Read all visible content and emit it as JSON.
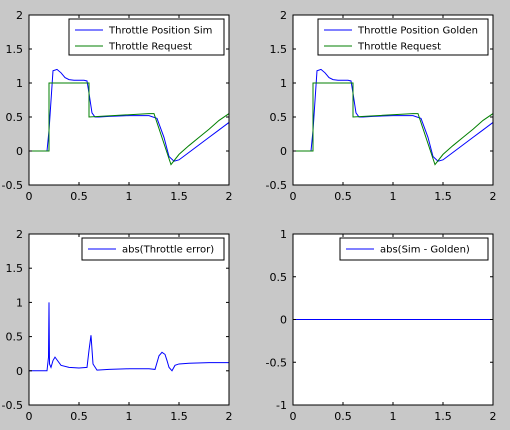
{
  "colors": {
    "figure_bg": "#c8c8c8",
    "axes_bg": "#ffffff",
    "blue": "#0000ff",
    "green": "#007f00",
    "axis": "#000000"
  },
  "chart_data": [
    {
      "type": "line",
      "title": "",
      "xlabel": "",
      "ylabel": "",
      "xlim": [
        0,
        2
      ],
      "ylim": [
        -0.5,
        2
      ],
      "xticks": [
        "0",
        "0.5",
        "1",
        "1.5",
        "2"
      ],
      "yticks": [
        "-0.5",
        "0",
        "0.5",
        "1",
        "1.5",
        "2"
      ],
      "legend_position": "top-right",
      "series": [
        {
          "name": "Throttle Position Sim",
          "color": "blue",
          "x": [
            0,
            0.18,
            0.2,
            0.24,
            0.28,
            0.32,
            0.36,
            0.4,
            0.45,
            0.5,
            0.55,
            0.58,
            0.6,
            0.63,
            0.66,
            0.7,
            0.8,
            1.0,
            1.2,
            1.28,
            1.35,
            1.4,
            1.45,
            1.5,
            1.6,
            1.7,
            1.8,
            1.9,
            2.0
          ],
          "y": [
            0,
            0,
            0.3,
            1.18,
            1.2,
            1.15,
            1.08,
            1.05,
            1.04,
            1.04,
            1.04,
            1.03,
            0.85,
            0.56,
            0.5,
            0.5,
            0.51,
            0.52,
            0.52,
            0.48,
            0.2,
            -0.08,
            -0.15,
            -0.13,
            -0.02,
            0.09,
            0.2,
            0.31,
            0.42
          ]
        },
        {
          "name": "Throttle Request",
          "color": "green",
          "x": [
            0,
            0.2,
            0.2,
            0.6,
            0.6,
            1.2,
            1.25,
            1.42,
            1.5,
            1.6,
            1.7,
            1.8,
            1.9,
            2.0
          ],
          "y": [
            0,
            0,
            1.0,
            1.0,
            0.5,
            0.55,
            0.55,
            -0.2,
            -0.05,
            0.08,
            0.2,
            0.32,
            0.45,
            0.55
          ]
        }
      ]
    },
    {
      "type": "line",
      "title": "",
      "xlabel": "",
      "ylabel": "",
      "xlim": [
        0,
        2
      ],
      "ylim": [
        -0.5,
        2
      ],
      "xticks": [
        "0",
        "0.5",
        "1",
        "1.5",
        "2"
      ],
      "yticks": [
        "-0.5",
        "0",
        "0.5",
        "1",
        "1.5",
        "2"
      ],
      "legend_position": "top-right",
      "series": [
        {
          "name": "Throttle Position Golden",
          "color": "blue",
          "x": [
            0,
            0.18,
            0.2,
            0.24,
            0.28,
            0.32,
            0.36,
            0.4,
            0.45,
            0.5,
            0.55,
            0.58,
            0.6,
            0.63,
            0.66,
            0.7,
            0.8,
            1.0,
            1.2,
            1.28,
            1.35,
            1.4,
            1.45,
            1.5,
            1.6,
            1.7,
            1.8,
            1.9,
            2.0
          ],
          "y": [
            0,
            0,
            0.3,
            1.18,
            1.2,
            1.15,
            1.08,
            1.05,
            1.04,
            1.04,
            1.04,
            1.03,
            0.85,
            0.56,
            0.5,
            0.5,
            0.51,
            0.52,
            0.52,
            0.48,
            0.2,
            -0.08,
            -0.15,
            -0.13,
            -0.02,
            0.09,
            0.2,
            0.31,
            0.42
          ]
        },
        {
          "name": "Throttle Request",
          "color": "green",
          "x": [
            0,
            0.2,
            0.2,
            0.6,
            0.6,
            1.2,
            1.25,
            1.42,
            1.5,
            1.6,
            1.7,
            1.8,
            1.9,
            2.0
          ],
          "y": [
            0,
            0,
            1.0,
            1.0,
            0.5,
            0.55,
            0.55,
            -0.2,
            -0.05,
            0.08,
            0.2,
            0.32,
            0.45,
            0.55
          ]
        }
      ]
    },
    {
      "type": "line",
      "title": "",
      "xlabel": "",
      "ylabel": "",
      "xlim": [
        0,
        2
      ],
      "ylim": [
        -0.5,
        2
      ],
      "xticks": [
        "0",
        "0.5",
        "1",
        "1.5",
        "2"
      ],
      "yticks": [
        "-0.5",
        "0",
        "0.5",
        "1",
        "1.5",
        "2"
      ],
      "legend_position": "top-right",
      "series": [
        {
          "name": "abs(Throttle error)",
          "color": "blue",
          "x": [
            0,
            0.18,
            0.195,
            0.2,
            0.205,
            0.22,
            0.24,
            0.26,
            0.28,
            0.32,
            0.4,
            0.5,
            0.58,
            0.6,
            0.62,
            0.64,
            0.68,
            0.8,
            1.0,
            1.2,
            1.26,
            1.28,
            1.3,
            1.33,
            1.36,
            1.38,
            1.4,
            1.43,
            1.46,
            1.5,
            1.6,
            1.8,
            2.0
          ],
          "y": [
            0,
            0,
            0.2,
            1.0,
            0.1,
            0.05,
            0.15,
            0.2,
            0.16,
            0.08,
            0.05,
            0.04,
            0.05,
            0.3,
            0.52,
            0.1,
            0.01,
            0.02,
            0.03,
            0.03,
            0.02,
            0.12,
            0.22,
            0.27,
            0.24,
            0.15,
            0.05,
            0.0,
            0.08,
            0.1,
            0.11,
            0.12,
            0.12
          ]
        }
      ]
    },
    {
      "type": "line",
      "title": "",
      "xlabel": "",
      "ylabel": "",
      "xlim": [
        0,
        2
      ],
      "ylim": [
        -1,
        1
      ],
      "xticks": [
        "0",
        "0.5",
        "1",
        "1.5",
        "2"
      ],
      "yticks": [
        "-1",
        "-0.5",
        "0",
        "0.5",
        "1"
      ],
      "legend_position": "top-right",
      "series": [
        {
          "name": "abs(Sim - Golden)",
          "color": "blue",
          "x": [
            0,
            2
          ],
          "y": [
            0,
            0
          ]
        }
      ]
    }
  ]
}
